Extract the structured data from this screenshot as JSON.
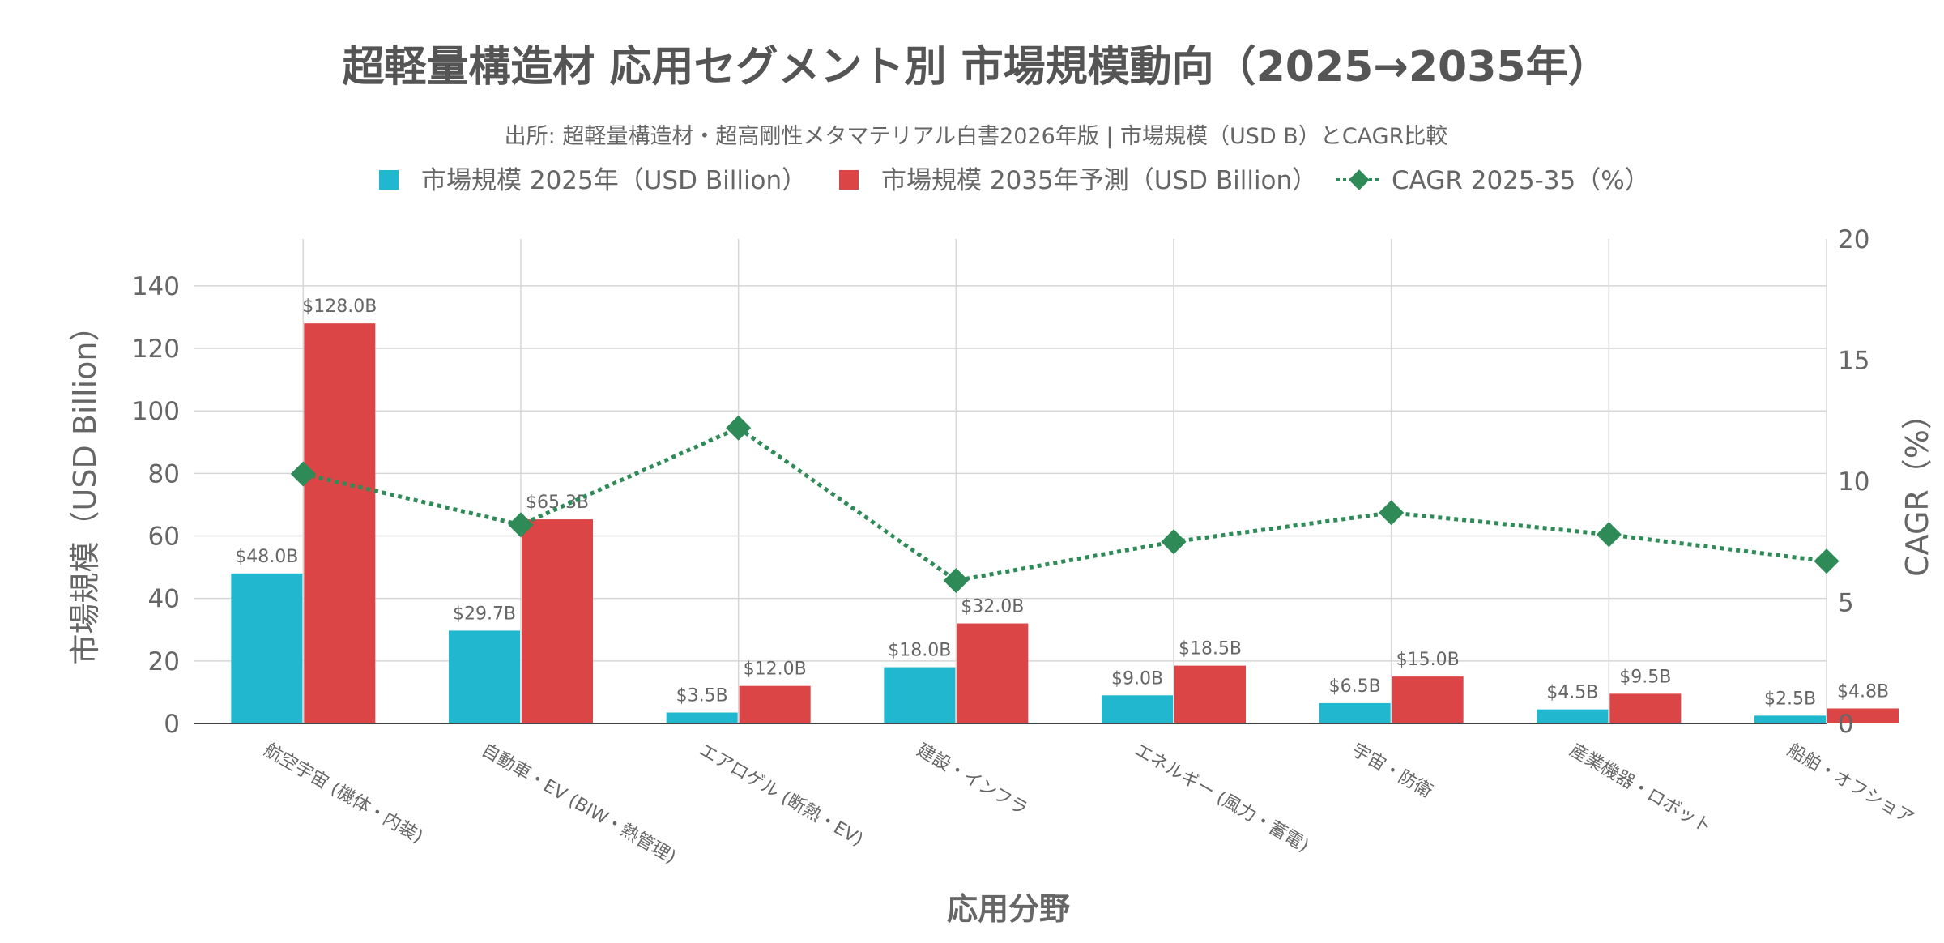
{
  "title": "超軽量構造材 応用セグメント別 市場規模動向（2025→2035年）",
  "subtitle": "出所: 超軽量構造材・超高剛性メタマテリアル白書2026年版 | 市場規模（USD B）とCAGR比較",
  "colors": {
    "bar_2025": "#21b8cf",
    "bar_2035": "#db4545",
    "cagr_line": "#2e8b57",
    "grid": "#d6d6d6",
    "text": "#666666",
    "title": "#555555"
  },
  "chart_data": {
    "type": "bar",
    "title": "超軽量構造材 応用セグメント別 市場規模動向（2025→2035年）",
    "subtitle": "出所: 超軽量構造材・超高剛性メタマテリアル白書2026年版 | 市場規模（USD B）とCAGR比較",
    "xlabel": "応用分野",
    "ylabel": "市場規模（USD Billion）",
    "y2label": "CAGR（%）",
    "ylim": [
      0,
      155
    ],
    "y2lim": [
      0,
      20
    ],
    "yticks": [
      0,
      20,
      40,
      60,
      80,
      100,
      120,
      140
    ],
    "y2ticks": [
      0,
      5,
      10,
      15,
      20
    ],
    "grid": true,
    "legend_position": "top-center",
    "categories": [
      "航空宇宙 (機体・内装)",
      "自動車・EV (BIW・熱管理)",
      "エアロゲル (断熱・EV)",
      "建設・インフラ",
      "エネルギー (風力・蓄電)",
      "宇宙・防衛",
      "産業機器・ロボット",
      "船舶・オフショア"
    ],
    "series": [
      {
        "name": "市場規模 2025年（USD Billion）",
        "type": "bar",
        "axis": "left",
        "values": [
          48.0,
          29.7,
          3.5,
          18.0,
          9.0,
          6.5,
          4.5,
          2.5
        ],
        "labels": [
          "$48.0B",
          "$29.7B",
          "$3.5B",
          "$18.0B",
          "$9.0B",
          "$6.5B",
          "$4.5B",
          "$2.5B"
        ]
      },
      {
        "name": "市場規模 2035年予測（USD Billion）",
        "type": "bar",
        "axis": "left",
        "values": [
          128.0,
          65.3,
          12.0,
          32.0,
          18.5,
          15.0,
          9.5,
          4.8
        ],
        "labels": [
          "$128.0B",
          "$65.3B",
          "$12.0B",
          "$32.0B",
          "$18.5B",
          "$15.0B",
          "$9.5B",
          "$4.8B"
        ]
      },
      {
        "name": "CAGR 2025-35（%）",
        "type": "line",
        "axis": "right",
        "values": [
          10.3,
          8.2,
          12.2,
          5.9,
          7.5,
          8.7,
          7.8,
          6.7
        ]
      }
    ]
  }
}
